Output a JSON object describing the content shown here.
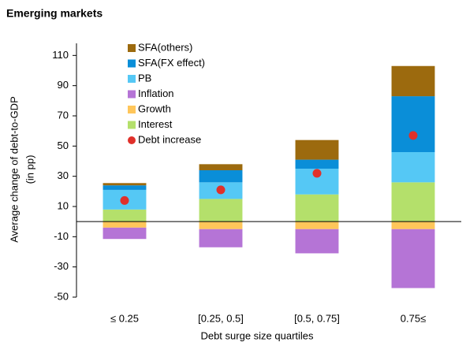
{
  "chart_data": {
    "type": "bar",
    "stacked": true,
    "title": "Emerging markets",
    "x_label": "Debt surge size quartiles",
    "y_label": [
      "Average change of debt-to-GDP",
      "(in pp)"
    ],
    "categories": [
      "≤ 0.25",
      "[0.25, 0.5]",
      "[0.5, 0.75]",
      "0.75≤"
    ],
    "series": [
      {
        "name": "Interest",
        "color": "#b4e06b",
        "values": [
          8,
          15,
          18,
          26
        ]
      },
      {
        "name": "Growth",
        "color": "#ffc65a",
        "values": [
          -4,
          -5,
          -5,
          -5
        ]
      },
      {
        "name": "Inflation",
        "color": "#b574d6",
        "values": [
          -7.5,
          -12,
          -16,
          -39
        ]
      },
      {
        "name": "PB",
        "color": "#55c8f5",
        "values": [
          13,
          11,
          17,
          20
        ]
      },
      {
        "name": "SFA(FX effect)",
        "color": "#0a8ed8",
        "values": [
          3,
          8,
          6,
          37
        ]
      },
      {
        "name": "SFA(others)",
        "color": "#9c6a0e",
        "values": [
          1.5,
          4,
          13,
          20
        ]
      },
      {
        "name": "Debt increase",
        "type": "scatter",
        "color": "#e0302a",
        "values": [
          14,
          21,
          32,
          57
        ]
      }
    ],
    "ylim": [
      -50,
      118
    ],
    "yticks": [
      -50,
      -30,
      -10,
      10,
      30,
      50,
      70,
      90,
      110
    ]
  }
}
